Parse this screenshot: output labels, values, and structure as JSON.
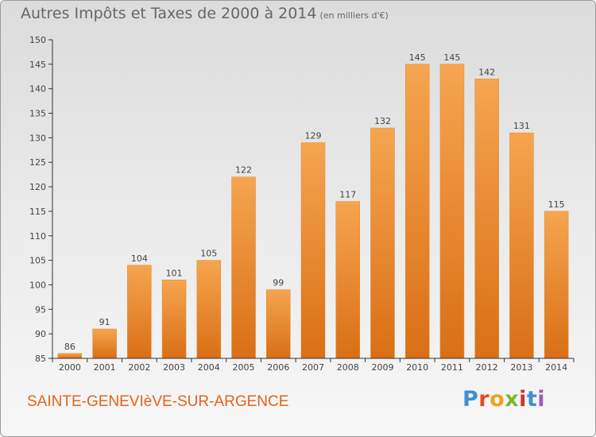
{
  "header": {
    "title": "Autres Impôts et Taxes de 2000 à 2014",
    "subtitle": "(en milliers d'€)"
  },
  "footer": {
    "commune": "SAINTE-GENEVIèVE-SUR-ARGENCE",
    "logo_text": "Proxiti",
    "logo_colors": [
      "#3d8fd6",
      "#e24e1b",
      "#f0a020",
      "#7ab830",
      "#d0342c",
      "#3d8fd6",
      "#a35ab8"
    ]
  },
  "chart_data": {
    "type": "bar",
    "title": "Autres Impôts et Taxes de 2000 à 2014",
    "subtitle": "(en milliers d'€)",
    "categories": [
      "2000",
      "2001",
      "2002",
      "2003",
      "2004",
      "2005",
      "2006",
      "2007",
      "2008",
      "2009",
      "2010",
      "2011",
      "2012",
      "2013",
      "2014"
    ],
    "values": [
      86,
      91,
      104,
      101,
      105,
      122,
      99,
      129,
      117,
      132,
      145,
      145,
      142,
      131,
      115
    ],
    "ylim": [
      85,
      150
    ],
    "yticks": [
      85,
      90,
      95,
      100,
      105,
      110,
      115,
      120,
      125,
      130,
      135,
      140,
      145,
      150
    ],
    "grid": false,
    "bar_color": "#f0922e"
  }
}
